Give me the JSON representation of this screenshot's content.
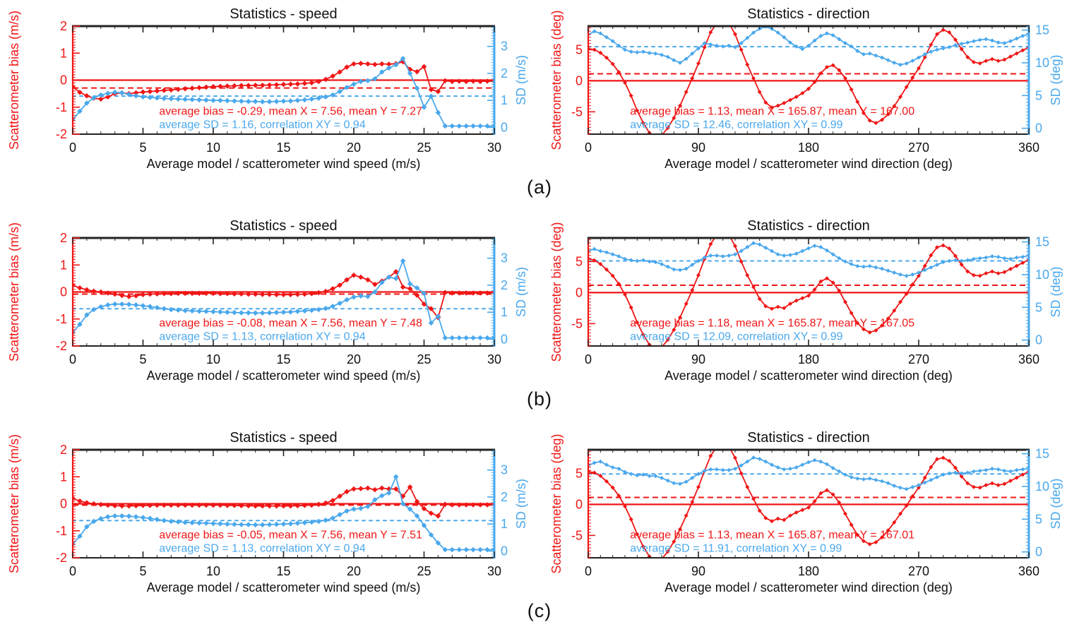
{
  "figure": {
    "row_labels": [
      "(a)",
      "(b)",
      "(c)"
    ],
    "colors": {
      "bias": "#f01616",
      "sd": "#4aa8ec",
      "axis": "#222222",
      "title": "#111111"
    }
  },
  "chart_data": [
    {
      "id": "a-speed",
      "row": 0,
      "col": 0,
      "type": "line",
      "title": "Statistics - speed",
      "xlabel": "Average model / scatterometer wind speed (m/s)",
      "ylabel_left": "Scatterometer bias (m/s)",
      "ylabel_right": "SD (m/s)",
      "x_axis": {
        "min": 0,
        "max": 30,
        "major": 5,
        "minor": 1,
        "labels": [
          0,
          5,
          10,
          15,
          20,
          25,
          30
        ]
      },
      "y_left": {
        "min": -2,
        "max": 2,
        "major": 1,
        "minor": 0.1,
        "labels": [
          -2,
          -1,
          0,
          1,
          2
        ]
      },
      "y_right": {
        "min": -0.25,
        "max": 3.75,
        "major": 1,
        "minor": 0.1,
        "labels": [
          0,
          1,
          2,
          3
        ]
      },
      "ref": {
        "zero": 0,
        "bias_dashed": -0.29,
        "sd_dashed": 1.16
      },
      "annotations": {
        "red": "average bias = -0.29, mean X = 7.56, mean Y = 7.27",
        "blue": "average SD = 1.16, correlation XY = 0.94",
        "x_frac": 0.205
      },
      "x_start": 0,
      "x_step": 0.5,
      "bias": [
        -0.25,
        -0.45,
        -0.58,
        -0.67,
        -0.7,
        -0.62,
        -0.5,
        -0.47,
        -0.5,
        -0.47,
        -0.44,
        -0.42,
        -0.4,
        -0.38,
        -0.36,
        -0.34,
        -0.32,
        -0.3,
        -0.28,
        -0.26,
        -0.24,
        -0.23,
        -0.22,
        -0.21,
        -0.2,
        -0.2,
        -0.19,
        -0.19,
        -0.18,
        -0.17,
        -0.16,
        -0.15,
        -0.14,
        -0.12,
        -0.1,
        -0.05,
        0.03,
        0.15,
        0.3,
        0.48,
        0.6,
        0.62,
        0.6,
        0.58,
        0.6,
        0.59,
        0.61,
        0.68,
        0.4,
        0.31,
        0.5,
        -0.35,
        -0.42,
        -0.02,
        -0.05,
        -0.04,
        -0.05,
        -0.04,
        -0.05,
        -0.04,
        -0.05
      ],
      "sd": [
        0.28,
        0.6,
        0.9,
        1.1,
        1.2,
        1.26,
        1.3,
        1.28,
        1.22,
        1.17,
        1.13,
        1.11,
        1.09,
        1.07,
        1.06,
        1.05,
        1.04,
        1.03,
        1.02,
        1.01,
        1.0,
        1.0,
        0.99,
        0.98,
        0.97,
        0.96,
        0.96,
        0.95,
        0.95,
        0.96,
        0.97,
        0.98,
        1.0,
        1.02,
        1.05,
        1.08,
        1.13,
        1.2,
        1.33,
        1.48,
        1.6,
        1.7,
        1.73,
        1.8,
        2.05,
        2.2,
        2.32,
        2.55,
        2.0,
        1.45,
        0.75,
        1.15,
        0.55,
        0.05,
        0.05,
        0.05,
        0.05,
        0.05,
        0.05,
        0.05,
        0.05
      ]
    },
    {
      "id": "a-direction",
      "row": 0,
      "col": 1,
      "type": "line",
      "title": "Statistics - direction",
      "xlabel": "Average model / scatterometer wind direction (deg)",
      "ylabel_left": "Scatterometer bias (deg)",
      "ylabel_right": "SD (deg)",
      "x_axis": {
        "min": 0,
        "max": 360,
        "major": 90,
        "minor": 10,
        "labels": [
          0,
          90,
          180,
          270,
          360
        ]
      },
      "y_left": {
        "min": -8.6,
        "max": 8.8,
        "major": 5,
        "minor": 0.5,
        "labels": [
          -5,
          0,
          5
        ]
      },
      "y_right": {
        "min": -0.9,
        "max": 15.6,
        "major": 5,
        "minor": 0.5,
        "labels": [
          0,
          5,
          10,
          15
        ]
      },
      "ref": {
        "zero": 0,
        "bias_dashed": 1.13,
        "sd_dashed": 12.46
      },
      "annotations": {
        "red": "average bias = 1.13, mean X = 165.87, mean Y = 167.00",
        "blue": "average SD = 12.46, correlation XY = 0.99",
        "x_frac": 0.095
      },
      "x_start": 0,
      "x_step": 5,
      "bias": [
        5.2,
        5.0,
        4.5,
        3.7,
        2.7,
        1.4,
        -0.3,
        -2.4,
        -4.8,
        -6.8,
        -8.4,
        -9.2,
        -8.8,
        -7.6,
        -6.0,
        -4.0,
        -1.8,
        0.4,
        2.8,
        5.4,
        7.8,
        9.3,
        9.9,
        9.3,
        7.5,
        5.0,
        2.6,
        0.4,
        -1.8,
        -3.5,
        -4.3,
        -4.0,
        -3.6,
        -3.1,
        -2.6,
        -2.0,
        -1.3,
        -0.2,
        1.2,
        2.2,
        2.5,
        1.7,
        0.4,
        -1.4,
        -3.4,
        -5.2,
        -6.4,
        -6.8,
        -6.3,
        -5.4,
        -4.1,
        -2.6,
        -1.0,
        0.5,
        2.0,
        3.8,
        5.8,
        7.5,
        8.2,
        7.8,
        6.6,
        5.1,
        3.8,
        3.0,
        2.8,
        3.2,
        3.5,
        3.2,
        3.4,
        3.9,
        4.4,
        4.9,
        5.4
      ],
      "sd": [
        14.3,
        14.8,
        14.5,
        13.9,
        13.3,
        12.6,
        12.0,
        11.7,
        11.6,
        11.7,
        11.5,
        11.4,
        11.2,
        10.9,
        10.4,
        10.0,
        10.6,
        11.4,
        12.2,
        13.0,
        12.8,
        12.6,
        12.5,
        12.6,
        12.4,
        13.0,
        13.8,
        14.6,
        15.2,
        15.5,
        15.2,
        14.6,
        13.9,
        13.1,
        12.5,
        12.1,
        12.6,
        13.4,
        14.1,
        14.5,
        14.2,
        13.6,
        13.0,
        12.5,
        11.8,
        11.3,
        11.4,
        11.1,
        10.8,
        10.4,
        10.0,
        9.7,
        9.9,
        10.3,
        10.8,
        11.3,
        11.7,
        12.0,
        12.2,
        12.4,
        12.7,
        12.9,
        13.1,
        13.3,
        13.5,
        13.6,
        13.4,
        13.1,
        13.0,
        13.3,
        13.7,
        14.1,
        14.4
      ]
    },
    {
      "id": "b-speed",
      "row": 1,
      "col": 0,
      "type": "line",
      "title": "Statistics - speed",
      "xlabel": "Average model / scatterometer wind speed (m/s)",
      "ylabel_left": "Scatterometer bias (m/s)",
      "ylabel_right": "SD (m/s)",
      "x_axis": {
        "min": 0,
        "max": 30,
        "major": 5,
        "minor": 1,
        "labels": [
          0,
          5,
          10,
          15,
          20,
          25,
          30
        ]
      },
      "y_left": {
        "min": -2,
        "max": 2,
        "major": 1,
        "minor": 0.1,
        "labels": [
          -2,
          -1,
          0,
          1,
          2
        ]
      },
      "y_right": {
        "min": -0.25,
        "max": 3.75,
        "major": 1,
        "minor": 0.1,
        "labels": [
          0,
          1,
          2,
          3
        ]
      },
      "ref": {
        "zero": 0,
        "bias_dashed": -0.08,
        "sd_dashed": 1.13
      },
      "annotations": {
        "red": "average bias = -0.08, mean X = 7.56, mean Y = 7.48",
        "blue": "average SD = 1.13, correlation XY = 0.94",
        "x_frac": 0.205
      },
      "x_start": 0,
      "x_step": 0.5,
      "bias": [
        0.25,
        0.15,
        0.08,
        0.03,
        0.0,
        -0.04,
        -0.08,
        -0.13,
        -0.17,
        -0.14,
        -0.1,
        -0.08,
        -0.07,
        -0.06,
        -0.06,
        -0.05,
        -0.05,
        -0.05,
        -0.05,
        -0.05,
        -0.05,
        -0.06,
        -0.06,
        -0.07,
        -0.07,
        -0.08,
        -0.08,
        -0.09,
        -0.09,
        -0.1,
        -0.1,
        -0.1,
        -0.09,
        -0.08,
        -0.06,
        -0.03,
        0.02,
        0.12,
        0.25,
        0.45,
        0.62,
        0.55,
        0.45,
        0.28,
        0.4,
        0.55,
        0.75,
        0.18,
        0.12,
        -0.12,
        -0.45,
        -0.62,
        -0.95,
        -0.02,
        -0.04,
        -0.04,
        -0.04,
        -0.04,
        -0.04,
        -0.04,
        -0.04
      ],
      "sd": [
        0.25,
        0.55,
        0.9,
        1.1,
        1.2,
        1.27,
        1.3,
        1.3,
        1.29,
        1.27,
        1.24,
        1.21,
        1.17,
        1.13,
        1.1,
        1.08,
        1.06,
        1.05,
        1.04,
        1.03,
        1.02,
        1.01,
        1.0,
        0.99,
        0.98,
        0.98,
        0.97,
        0.97,
        0.98,
        0.99,
        1.0,
        1.01,
        1.03,
        1.05,
        1.07,
        1.1,
        1.14,
        1.22,
        1.33,
        1.46,
        1.56,
        1.6,
        1.58,
        1.75,
        2.1,
        2.3,
        2.25,
        2.9,
        2.05,
        1.9,
        1.7,
        0.6,
        0.85,
        0.05,
        0.05,
        0.05,
        0.05,
        0.05,
        0.05,
        0.05,
        0.05
      ]
    },
    {
      "id": "b-direction",
      "row": 1,
      "col": 1,
      "type": "line",
      "title": "Statistics - direction",
      "xlabel": "Average model / scatterometer wind direction (deg)",
      "ylabel_left": "Scatterometer bias (deg)",
      "ylabel_right": "SD (deg)",
      "x_axis": {
        "min": 0,
        "max": 360,
        "major": 90,
        "minor": 10,
        "labels": [
          0,
          90,
          180,
          270,
          360
        ]
      },
      "y_left": {
        "min": -8.6,
        "max": 8.8,
        "major": 5,
        "minor": 0.5,
        "labels": [
          -5,
          0,
          5
        ]
      },
      "y_right": {
        "min": -0.9,
        "max": 15.6,
        "major": 5,
        "minor": 0.5,
        "labels": [
          0,
          5,
          10,
          15
        ]
      },
      "ref": {
        "zero": 0,
        "bias_dashed": 1.18,
        "sd_dashed": 12.09
      },
      "annotations": {
        "red": "average bias = 1.18, mean X = 165.87, mean Y = 167.05",
        "blue": "average SD = 12.09, correlation XY = 0.99",
        "x_frac": 0.095
      },
      "x_start": 0,
      "x_step": 5,
      "bias": [
        5.5,
        5.2,
        4.6,
        3.7,
        2.7,
        1.4,
        -0.3,
        -2.4,
        -4.8,
        -6.8,
        -8.4,
        -9.2,
        -8.8,
        -7.6,
        -6.0,
        -4.0,
        -1.8,
        0.4,
        2.8,
        5.4,
        7.8,
        9.3,
        9.9,
        9.3,
        7.5,
        5.0,
        2.8,
        0.9,
        -1.0,
        -2.2,
        -2.6,
        -2.3,
        -2.5,
        -1.8,
        -1.3,
        -0.9,
        -0.5,
        0.5,
        1.8,
        2.3,
        1.6,
        0.3,
        -1.5,
        -3.3,
        -4.9,
        -5.9,
        -6.4,
        -6.1,
        -5.3,
        -4.2,
        -2.9,
        -1.5,
        -0.2,
        1.3,
        2.7,
        4.3,
        6.0,
        7.3,
        7.6,
        7.1,
        5.9,
        4.5,
        3.4,
        2.8,
        2.7,
        3.1,
        3.4,
        3.1,
        3.3,
        3.8,
        4.3,
        4.8,
        5.3
      ],
      "sd": [
        13.6,
        13.9,
        13.6,
        13.4,
        13.1,
        12.8,
        12.4,
        12.2,
        12.1,
        12.2,
        12.0,
        11.9,
        11.6,
        11.2,
        10.8,
        10.7,
        10.9,
        11.5,
        12.1,
        12.6,
        12.9,
        12.9,
        12.8,
        12.9,
        13.1,
        13.6,
        14.2,
        14.8,
        14.6,
        14.1,
        13.6,
        13.1,
        12.9,
        13.0,
        13.2,
        13.6,
        14.0,
        14.4,
        14.2,
        13.7,
        13.1,
        12.5,
        12.0,
        11.6,
        11.3,
        11.2,
        11.3,
        11.1,
        10.9,
        10.6,
        10.3,
        10.0,
        9.8,
        10.0,
        10.3,
        10.7,
        11.1,
        11.5,
        11.9,
        12.1,
        12.2,
        12.1,
        12.2,
        12.4,
        12.5,
        12.6,
        12.8,
        12.7,
        12.5,
        12.4,
        12.6,
        12.7,
        12.9
      ]
    },
    {
      "id": "c-speed",
      "row": 2,
      "col": 0,
      "type": "line",
      "title": "Statistics - speed",
      "xlabel": "Average model / scatterometer wind speed (m/s)",
      "ylabel_left": "Scatterometer bias (m/s)",
      "ylabel_right": "SD (m/s)",
      "x_axis": {
        "min": 0,
        "max": 30,
        "major": 5,
        "minor": 1,
        "labels": [
          0,
          5,
          10,
          15,
          20,
          25,
          30
        ]
      },
      "y_left": {
        "min": -2,
        "max": 2,
        "major": 1,
        "minor": 0.1,
        "labels": [
          -2,
          -1,
          0,
          1,
          2
        ]
      },
      "y_right": {
        "min": -0.25,
        "max": 3.75,
        "major": 1,
        "minor": 0.1,
        "labels": [
          0,
          1,
          2,
          3
        ]
      },
      "ref": {
        "zero": 0,
        "bias_dashed": -0.05,
        "sd_dashed": 1.13
      },
      "annotations": {
        "red": "average bias = -0.05, mean X = 7.56, mean Y = 7.51",
        "blue": "average SD = 1.13, correlation XY = 0.94",
        "x_frac": 0.205
      },
      "x_start": 0,
      "x_step": 0.5,
      "bias": [
        0.2,
        0.1,
        0.04,
        0.0,
        -0.03,
        -0.05,
        -0.07,
        -0.08,
        -0.08,
        -0.07,
        -0.06,
        -0.06,
        -0.05,
        -0.05,
        -0.05,
        -0.05,
        -0.05,
        -0.05,
        -0.05,
        -0.05,
        -0.05,
        -0.05,
        -0.06,
        -0.06,
        -0.07,
        -0.07,
        -0.08,
        -0.08,
        -0.08,
        -0.08,
        -0.08,
        -0.08,
        -0.07,
        -0.06,
        -0.05,
        -0.02,
        0.03,
        0.12,
        0.28,
        0.45,
        0.55,
        0.56,
        0.58,
        0.52,
        0.58,
        0.55,
        0.55,
        0.28,
        0.62,
        0.08,
        -0.18,
        -0.35,
        -0.45,
        -0.02,
        -0.04,
        -0.04,
        -0.04,
        -0.04,
        -0.04,
        -0.04,
        -0.04
      ],
      "sd": [
        0.25,
        0.55,
        0.9,
        1.1,
        1.2,
        1.27,
        1.3,
        1.3,
        1.29,
        1.27,
        1.24,
        1.21,
        1.17,
        1.13,
        1.1,
        1.08,
        1.06,
        1.05,
        1.04,
        1.03,
        1.02,
        1.01,
        1.0,
        0.99,
        0.98,
        0.98,
        0.97,
        0.97,
        0.98,
        0.99,
        1.0,
        1.01,
        1.03,
        1.05,
        1.07,
        1.1,
        1.14,
        1.22,
        1.35,
        1.48,
        1.55,
        1.58,
        1.65,
        1.9,
        2.05,
        2.15,
        2.75,
        1.75,
        1.55,
        1.3,
        0.95,
        0.6,
        0.3,
        0.05,
        0.05,
        0.05,
        0.05,
        0.05,
        0.05,
        0.05,
        0.05
      ]
    },
    {
      "id": "c-direction",
      "row": 2,
      "col": 1,
      "type": "line",
      "title": "Statistics - direction",
      "xlabel": "Average model / scatterometer wind direction (deg)",
      "ylabel_left": "Scatterometer bias (deg)",
      "ylabel_right": "SD (deg)",
      "x_axis": {
        "min": 0,
        "max": 360,
        "major": 90,
        "minor": 10,
        "labels": [
          0,
          90,
          180,
          270,
          360
        ]
      },
      "y_left": {
        "min": -8.6,
        "max": 8.8,
        "major": 5,
        "minor": 0.5,
        "labels": [
          -5,
          0,
          5
        ]
      },
      "y_right": {
        "min": -0.9,
        "max": 15.6,
        "major": 5,
        "minor": 0.5,
        "labels": [
          0,
          5,
          10,
          15
        ]
      },
      "ref": {
        "zero": 0,
        "bias_dashed": 1.13,
        "sd_dashed": 11.91
      },
      "annotations": {
        "red": "average bias = 1.13, mean X = 165.87, mean Y = 167.01",
        "blue": "average SD = 11.91, correlation XY = 0.99",
        "x_frac": 0.095
      },
      "x_start": 0,
      "x_step": 5,
      "bias": [
        5.3,
        5.1,
        4.6,
        3.7,
        2.7,
        1.4,
        -0.3,
        -2.4,
        -4.8,
        -6.8,
        -8.4,
        -9.2,
        -8.8,
        -7.6,
        -6.0,
        -4.0,
        -1.8,
        0.4,
        2.8,
        5.4,
        7.8,
        9.3,
        9.9,
        9.3,
        7.5,
        5.0,
        2.8,
        0.9,
        -1.0,
        -2.2,
        -2.7,
        -2.3,
        -2.5,
        -1.8,
        -1.3,
        -0.9,
        -0.5,
        0.5,
        1.8,
        2.3,
        1.6,
        0.3,
        -1.5,
        -3.3,
        -4.9,
        -5.9,
        -6.4,
        -6.1,
        -5.3,
        -4.2,
        -2.9,
        -1.5,
        -0.2,
        1.3,
        2.7,
        4.3,
        6.0,
        7.3,
        7.5,
        7.0,
        5.9,
        4.5,
        3.4,
        2.8,
        2.7,
        3.1,
        3.4,
        3.1,
        3.3,
        3.8,
        4.3,
        4.8,
        5.3
      ],
      "sd": [
        13.2,
        13.6,
        13.8,
        13.3,
        12.9,
        12.7,
        12.2,
        11.9,
        11.7,
        11.8,
        11.6,
        11.6,
        11.3,
        10.9,
        10.5,
        10.4,
        10.7,
        11.3,
        11.9,
        12.4,
        12.6,
        12.6,
        12.5,
        12.5,
        12.7,
        13.2,
        13.8,
        14.4,
        14.2,
        13.8,
        13.3,
        12.9,
        12.6,
        12.7,
        12.9,
        13.3,
        13.7,
        14.0,
        13.8,
        13.4,
        12.8,
        12.3,
        11.8,
        11.4,
        11.2,
        11.1,
        11.2,
        11.0,
        10.8,
        10.5,
        10.1,
        9.8,
        9.6,
        9.9,
        10.2,
        10.6,
        11.0,
        11.4,
        11.8,
        12.0,
        12.1,
        12.0,
        12.1,
        12.3,
        12.4,
        12.5,
        12.7,
        12.6,
        12.4,
        12.3,
        12.5,
        12.6,
        12.8
      ]
    }
  ]
}
